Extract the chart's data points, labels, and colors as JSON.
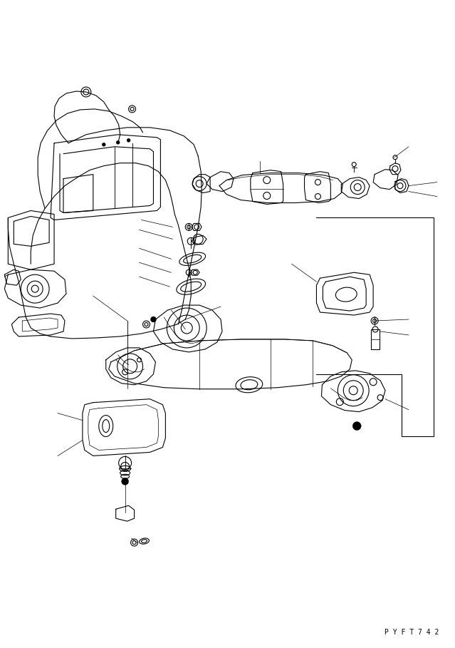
{
  "watermark": "P Y F T 7 4 2",
  "bg_color": "#ffffff",
  "line_color": "#000000",
  "figsize": [
    6.39,
    9.09
  ],
  "dpi": 100
}
